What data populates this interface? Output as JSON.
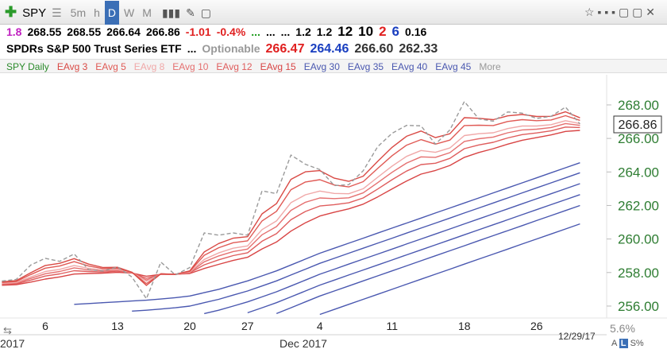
{
  "toolbar": {
    "symbol": "SPY",
    "timeframes": [
      "5m",
      "h",
      "D",
      "W",
      "M"
    ],
    "active_timeframe": 2
  },
  "quote": {
    "items": [
      {
        "text": "1.8",
        "color": "#c020c0"
      },
      {
        "text": "268.55",
        "color": "#000"
      },
      {
        "text": "268.55",
        "color": "#000"
      },
      {
        "text": "266.64",
        "color": "#000"
      },
      {
        "text": "266.86",
        "color": "#000"
      },
      {
        "text": "-1.01",
        "color": "#e02020"
      },
      {
        "text": "-0.4%",
        "color": "#e02020"
      },
      {
        "text": "...",
        "color": "#1a9a1a"
      },
      {
        "text": "...",
        "color": "#000"
      },
      {
        "text": "...",
        "color": "#000"
      },
      {
        "text": "1.2",
        "color": "#000"
      },
      {
        "text": "1.2",
        "color": "#000"
      },
      {
        "text": "12",
        "color": "#000"
      },
      {
        "text": "10",
        "color": "#000"
      },
      {
        "text": "2",
        "color": "#e02020"
      },
      {
        "text": "6",
        "color": "#1a3fc0"
      },
      {
        "text": "0.16",
        "color": "#000"
      }
    ]
  },
  "description": {
    "name": "SPDRs S&P 500 Trust Series ETF",
    "items": [
      {
        "text": "...",
        "color": "#000"
      },
      {
        "text": "Optionable",
        "color": "#999"
      },
      {
        "text": "266.47",
        "color": "#e02020"
      },
      {
        "text": "264.46",
        "color": "#1a3fc0"
      },
      {
        "text": "266.60",
        "color": "#333"
      },
      {
        "text": "262.33",
        "color": "#333"
      }
    ]
  },
  "legend_more": "More",
  "chart_data": {
    "type": "line",
    "categories": [
      null,
      null,
      null,
      "6",
      null,
      null,
      null,
      null,
      "13",
      null,
      null,
      null,
      null,
      "20",
      null,
      null,
      null,
      "27",
      null,
      null,
      null,
      null,
      "4",
      null,
      null,
      null,
      null,
      "11",
      null,
      null,
      null,
      null,
      "18",
      null,
      null,
      null,
      null,
      "26",
      null,
      null,
      null
    ],
    "month_labels": [
      "2017",
      "Dec 2017"
    ],
    "date_label": "12/29/17",
    "price_label": "266.86",
    "percent_label": "5.6%",
    "ylim": [
      255.4,
      268.7
    ],
    "yticks": [
      {
        "value": 256,
        "label": "256.00"
      },
      {
        "value": 258,
        "label": "258.00"
      },
      {
        "value": 260,
        "label": "260.00"
      },
      {
        "value": 262,
        "label": "262.00"
      },
      {
        "value": 264,
        "label": "264.00"
      },
      {
        "value": 266,
        "label": "266.00"
      },
      {
        "value": 268,
        "label": "268.00"
      }
    ],
    "grid": false,
    "series": [
      {
        "name": "SPY Daily",
        "color": "#9a9a9a",
        "legend_color": "#2a8a2a",
        "dash": true,
        "values": [
          257.49,
          257.59,
          258.45,
          258.85,
          258.67,
          259.11,
          258.17,
          258.09,
          258.33,
          257.73,
          256.44,
          258.62,
          257.86,
          258.3,
          260.36,
          260.23,
          260.36,
          260.23,
          262.87,
          262.71,
          265.01,
          264.46,
          264.14,
          263.19,
          263.24,
          264.07,
          265.51,
          266.31,
          266.78,
          266.75,
          265.66,
          266.51,
          268.2,
          267.17,
          267.03,
          267.58,
          267.51,
          267.19,
          267.32,
          267.87,
          266.86
        ]
      },
      {
        "name": "EAvg 3",
        "color": "#d94a45",
        "values": [
          257.45,
          257.52,
          257.99,
          258.42,
          258.55,
          258.83,
          258.5,
          258.3,
          258.31,
          258.02,
          257.23,
          257.93,
          257.89,
          258.1,
          259.23,
          259.73,
          260.05,
          260.14,
          261.5,
          262.11,
          263.56,
          264.01,
          264.08,
          263.63,
          263.44,
          263.75,
          264.63,
          265.47,
          266.13,
          266.44,
          266.05,
          266.28,
          267.24,
          267.2,
          267.12,
          267.35,
          267.43,
          267.31,
          267.32,
          267.59,
          267.23
        ]
      },
      {
        "name": "EAvg 5",
        "color": "#e05a55",
        "values": [
          257.41,
          257.47,
          257.88,
          258.26,
          258.39,
          258.65,
          258.39,
          258.23,
          258.25,
          258.01,
          257.34,
          257.92,
          257.89,
          258.07,
          259.03,
          259.48,
          259.78,
          259.89,
          261.08,
          261.65,
          262.94,
          263.4,
          263.54,
          263.22,
          263.11,
          263.42,
          264.21,
          264.97,
          265.6,
          265.93,
          265.66,
          265.9,
          266.77,
          266.79,
          266.77,
          267.01,
          267.12,
          267.06,
          267.1,
          267.36,
          267.08
        ]
      },
      {
        "name": "EAvg 8",
        "color": "#f0a8a8",
        "values": [
          257.36,
          257.41,
          257.74,
          258.06,
          258.19,
          258.42,
          258.25,
          258.15,
          258.18,
          258.0,
          257.48,
          257.91,
          257.89,
          258.03,
          258.78,
          259.17,
          259.45,
          259.59,
          260.56,
          261.08,
          262.17,
          262.64,
          262.86,
          262.72,
          262.7,
          263.0,
          263.68,
          264.35,
          264.93,
          265.28,
          265.17,
          265.43,
          266.17,
          266.28,
          266.34,
          266.59,
          266.74,
          266.74,
          266.82,
          267.06,
          266.89
        ]
      },
      {
        "name": "EAvg 10",
        "color": "#e57070",
        "values": [
          257.32,
          257.38,
          257.65,
          257.93,
          258.06,
          258.28,
          258.16,
          258.1,
          258.13,
          257.99,
          257.56,
          257.91,
          257.89,
          258.0,
          258.64,
          258.99,
          259.25,
          259.4,
          260.25,
          260.74,
          261.71,
          262.19,
          262.45,
          262.41,
          262.46,
          262.75,
          263.36,
          263.98,
          264.53,
          264.9,
          264.87,
          265.15,
          265.82,
          265.98,
          266.08,
          266.34,
          266.51,
          266.55,
          266.65,
          266.89,
          266.78
        ]
      },
      {
        "name": "EAvg 12",
        "color": "#df5d5d",
        "values": [
          257.29,
          257.33,
          257.55,
          257.79,
          257.92,
          258.11,
          258.06,
          258.03,
          258.08,
          257.98,
          257.66,
          257.9,
          257.89,
          257.98,
          258.46,
          258.76,
          259.01,
          259.18,
          259.87,
          260.32,
          261.15,
          261.64,
          261.97,
          262.05,
          262.16,
          262.45,
          262.98,
          263.54,
          264.05,
          264.44,
          264.52,
          264.81,
          265.39,
          265.61,
          265.77,
          266.03,
          266.23,
          266.33,
          266.45,
          266.68,
          266.65
        ]
      },
      {
        "name": "EAvg 15",
        "color": "#d84444",
        "values": [
          257.24,
          257.28,
          257.43,
          257.61,
          257.74,
          257.91,
          257.94,
          257.96,
          258.01,
          257.97,
          257.78,
          257.89,
          257.89,
          257.94,
          258.24,
          258.49,
          258.72,
          258.91,
          259.41,
          259.82,
          260.47,
          260.97,
          261.37,
          261.6,
          261.8,
          262.08,
          262.51,
          262.99,
          263.46,
          263.87,
          264.09,
          264.39,
          264.87,
          265.16,
          265.39,
          265.66,
          265.89,
          266.05,
          266.21,
          266.42,
          266.48
        ]
      },
      {
        "name": "EAvg 30",
        "color": "#4a58b0",
        "values": [
          null,
          null,
          null,
          null,
          null,
          256.1,
          256.15,
          256.2,
          256.25,
          256.3,
          256.35,
          256.42,
          256.5,
          256.6,
          256.8,
          257.0,
          257.25,
          257.5,
          257.8,
          258.1,
          258.45,
          258.8,
          259.15,
          259.45,
          259.75,
          260.05,
          260.35,
          260.65,
          260.95,
          261.25,
          261.55,
          261.85,
          262.15,
          262.45,
          262.75,
          263.05,
          263.35,
          263.65,
          263.95,
          264.25,
          264.55
        ]
      },
      {
        "name": "EAvg 35",
        "color": "#4a58b0",
        "values": [
          null,
          null,
          null,
          null,
          null,
          null,
          null,
          null,
          null,
          255.7,
          255.75,
          255.82,
          255.9,
          256.0,
          256.2,
          256.4,
          256.65,
          256.9,
          257.2,
          257.5,
          257.85,
          258.2,
          258.55,
          258.85,
          259.15,
          259.45,
          259.75,
          260.05,
          260.35,
          260.65,
          260.95,
          261.25,
          261.55,
          261.85,
          262.15,
          262.45,
          262.75,
          263.05,
          263.35,
          263.65,
          263.95
        ]
      },
      {
        "name": "EAvg 40",
        "color": "#4a58b0",
        "values": [
          null,
          null,
          null,
          null,
          null,
          null,
          null,
          null,
          null,
          null,
          null,
          null,
          null,
          null,
          255.55,
          255.75,
          256.0,
          256.25,
          256.55,
          256.85,
          257.2,
          257.55,
          257.9,
          258.2,
          258.5,
          258.8,
          259.1,
          259.4,
          259.7,
          260.0,
          260.3,
          260.6,
          260.9,
          261.2,
          261.5,
          261.8,
          262.1,
          262.4,
          262.7,
          263.0,
          263.3
        ]
      },
      {
        "name": "EAvg 45",
        "color": "#4a58b0",
        "values": [
          null,
          null,
          null,
          null,
          null,
          null,
          null,
          null,
          null,
          null,
          null,
          null,
          null,
          null,
          null,
          null,
          null,
          255.6,
          255.9,
          256.2,
          256.55,
          256.9,
          257.25,
          257.55,
          257.85,
          258.15,
          258.45,
          258.75,
          259.05,
          259.35,
          259.65,
          259.95,
          260.25,
          260.55,
          260.85,
          261.15,
          261.45,
          261.75,
          262.05,
          262.35,
          262.65
        ]
      },
      {
        "color": "#4a58b0",
        "values": [
          null,
          null,
          null,
          null,
          null,
          null,
          null,
          null,
          null,
          null,
          null,
          null,
          null,
          null,
          null,
          null,
          null,
          null,
          null,
          255.55,
          255.9,
          256.25,
          256.6,
          256.9,
          257.2,
          257.5,
          257.8,
          258.1,
          258.4,
          258.7,
          259.0,
          259.3,
          259.6,
          259.9,
          260.2,
          260.5,
          260.8,
          261.1,
          261.4,
          261.7,
          262.0
        ]
      },
      {
        "color": "#4a58b0",
        "values": [
          null,
          null,
          null,
          null,
          null,
          null,
          null,
          null,
          null,
          null,
          null,
          null,
          null,
          null,
          null,
          null,
          null,
          null,
          null,
          null,
          null,
          null,
          255.5,
          255.8,
          256.1,
          256.4,
          256.7,
          257.0,
          257.3,
          257.6,
          257.9,
          258.2,
          258.5,
          258.8,
          259.1,
          259.4,
          259.7,
          260.0,
          260.3,
          260.6,
          260.9
        ]
      }
    ]
  }
}
